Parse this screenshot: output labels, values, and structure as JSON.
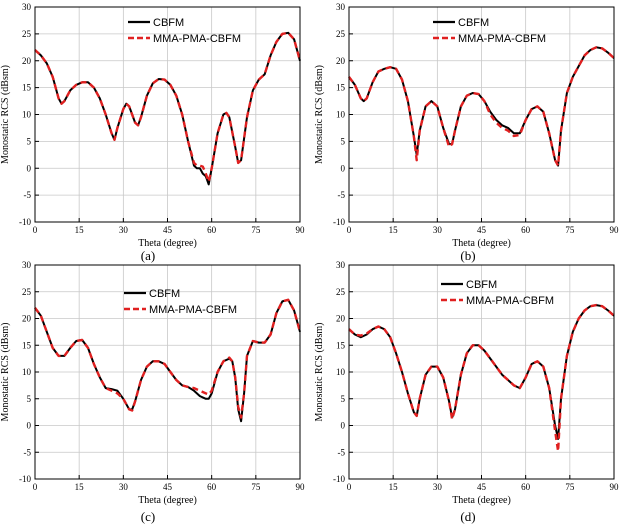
{
  "chart_data": [
    {
      "type": "line",
      "caption": "(a)",
      "xlabel": "Theta (degree)",
      "ylabel": "Monostatic RCS (dBsm)",
      "xlim": [
        0,
        90
      ],
      "ylim": [
        -10,
        30
      ],
      "xticks": [
        0,
        15,
        30,
        45,
        60,
        75,
        90
      ],
      "yticks": [
        -10,
        -5,
        0,
        5,
        10,
        15,
        20,
        25,
        30
      ],
      "grid": true,
      "legend_position": "top-right",
      "series": [
        {
          "name": "CBFM",
          "color": "#000000",
          "style": "solid",
          "x": [
            0,
            2,
            4,
            6,
            8,
            9,
            10,
            12,
            14,
            16,
            18,
            20,
            22,
            24,
            26,
            27,
            28,
            30,
            31,
            32,
            34,
            35,
            36,
            38,
            40,
            42,
            44,
            46,
            48,
            50,
            52,
            54,
            55,
            56,
            57,
            58,
            59,
            60,
            62,
            64,
            65,
            66,
            68,
            69,
            70,
            72,
            74,
            76,
            78,
            80,
            82,
            84,
            86,
            88,
            90
          ],
          "y": [
            22,
            21,
            19.5,
            17,
            13,
            12,
            12.5,
            14.5,
            15.5,
            16,
            16,
            15,
            13,
            10,
            6.5,
            5.3,
            7.5,
            11,
            12,
            11.5,
            8.5,
            8,
            9.5,
            13.5,
            15.8,
            16.6,
            16.5,
            15.5,
            13.5,
            10,
            5,
            0.5,
            0,
            0,
            -1,
            -1.5,
            -3,
            0,
            6.5,
            10,
            10.3,
            9.5,
            4,
            1,
            1.5,
            9.5,
            14.5,
            16.5,
            17.5,
            21,
            23.5,
            25,
            25.2,
            24,
            20
          ]
        },
        {
          "name": "MMA-PMA-CBFM",
          "color": "#e02020",
          "style": "dashed",
          "x": [
            0,
            2,
            4,
            6,
            8,
            9,
            10,
            12,
            14,
            16,
            18,
            20,
            22,
            24,
            26,
            27,
            28,
            30,
            31,
            32,
            34,
            35,
            36,
            38,
            40,
            42,
            44,
            46,
            48,
            50,
            52,
            54,
            55,
            56,
            57,
            58,
            59,
            60,
            62,
            64,
            65,
            66,
            68,
            69,
            70,
            72,
            74,
            76,
            78,
            80,
            82,
            84,
            86,
            88,
            90
          ],
          "y": [
            22,
            21,
            19.5,
            17,
            13,
            12,
            12.5,
            14.5,
            15.5,
            16,
            16,
            15,
            13,
            10,
            6.5,
            5.3,
            7.5,
            11,
            12,
            11.5,
            8.5,
            8,
            9.5,
            13.5,
            15.8,
            16.6,
            16.5,
            15.5,
            13.5,
            10,
            5,
            1,
            0.5,
            0.5,
            0.3,
            -1,
            -2.5,
            0,
            6.5,
            10,
            10.3,
            9.5,
            4,
            1,
            1.5,
            9.5,
            14.5,
            16.5,
            17.5,
            21,
            23.5,
            25,
            25.2,
            24,
            20
          ]
        }
      ]
    },
    {
      "type": "line",
      "caption": "(b)",
      "xlabel": "Theta (degree)",
      "ylabel": "Monostatic RCS (dBsm)",
      "xlim": [
        0,
        90
      ],
      "ylim": [
        -10,
        30
      ],
      "xticks": [
        0,
        15,
        30,
        45,
        60,
        75,
        90
      ],
      "yticks": [
        -10,
        -5,
        0,
        5,
        10,
        15,
        20,
        25,
        30
      ],
      "grid": true,
      "legend_position": "top-right",
      "series": [
        {
          "name": "CBFM",
          "color": "#000000",
          "style": "solid",
          "x": [
            0,
            2,
            4,
            5,
            6,
            8,
            10,
            12,
            14,
            16,
            18,
            20,
            22,
            23,
            24,
            26,
            28,
            30,
            32,
            34,
            35,
            36,
            38,
            40,
            42,
            44,
            46,
            48,
            50,
            52,
            54,
            56,
            58,
            60,
            62,
            64,
            66,
            68,
            70,
            71,
            72,
            74,
            76,
            78,
            80,
            82,
            84,
            86,
            88,
            90
          ],
          "y": [
            17,
            15.5,
            13,
            12.5,
            13,
            16,
            18,
            18.5,
            18.8,
            18.5,
            16.5,
            12.5,
            6,
            2.5,
            7,
            11.5,
            12.5,
            11.5,
            7.5,
            4.5,
            4.5,
            7,
            11.5,
            13.5,
            14,
            13.8,
            12.5,
            10.5,
            9,
            8,
            7.5,
            6.5,
            6.5,
            9,
            11,
            11.5,
            10.5,
            6.5,
            1.5,
            0.5,
            7,
            14,
            17,
            19,
            21,
            22,
            22.5,
            22.3,
            21.5,
            20.5
          ]
        },
        {
          "name": "MMA-PMA-CBFM",
          "color": "#e02020",
          "style": "dashed",
          "x": [
            0,
            2,
            4,
            5,
            6,
            8,
            10,
            12,
            14,
            16,
            18,
            20,
            22,
            23,
            24,
            26,
            28,
            30,
            32,
            34,
            35,
            36,
            38,
            40,
            42,
            44,
            46,
            48,
            50,
            52,
            54,
            56,
            58,
            60,
            62,
            64,
            66,
            68,
            70,
            71,
            72,
            74,
            76,
            78,
            80,
            82,
            84,
            86,
            88,
            90
          ],
          "y": [
            17,
            15.5,
            13,
            12.5,
            13,
            16,
            18,
            18.5,
            18.8,
            18.5,
            16.5,
            12.5,
            6,
            1.5,
            7,
            11.5,
            12.5,
            11.5,
            7.5,
            4,
            4.5,
            7,
            11.5,
            13.5,
            14,
            13.8,
            12.5,
            10,
            8.5,
            7.5,
            7,
            6,
            6.2,
            9,
            11,
            11.5,
            10.5,
            6.5,
            1.5,
            0.5,
            7,
            14,
            17,
            19,
            21,
            22,
            22.5,
            22.3,
            21.5,
            20.5
          ]
        }
      ]
    },
    {
      "type": "line",
      "caption": "(c)",
      "xlabel": "Theta (degree)",
      "ylabel": "Monostatic RCS (dBsm)",
      "xlim": [
        0,
        90
      ],
      "ylim": [
        -10,
        30
      ],
      "xticks": [
        0,
        15,
        30,
        45,
        60,
        75,
        90
      ],
      "yticks": [
        -10,
        -5,
        0,
        5,
        10,
        15,
        20,
        25,
        30
      ],
      "grid": true,
      "legend_position": "top-right",
      "series": [
        {
          "name": "CBFM",
          "color": "#000000",
          "style": "solid",
          "x": [
            0,
            2,
            4,
            6,
            8,
            10,
            12,
            14,
            16,
            18,
            20,
            22,
            24,
            26,
            28,
            30,
            32,
            33,
            34,
            36,
            38,
            40,
            42,
            44,
            46,
            48,
            50,
            52,
            54,
            56,
            58,
            59,
            60,
            62,
            64,
            66,
            67,
            68,
            69,
            70,
            71,
            72,
            74,
            76,
            78,
            80,
            82,
            84,
            86,
            88,
            90
          ],
          "y": [
            22,
            20.5,
            17.5,
            14.5,
            13,
            13,
            14.5,
            15.8,
            16,
            14.5,
            11.5,
            9,
            7,
            6.8,
            6.5,
            5,
            3,
            3,
            4.5,
            8.5,
            11,
            12,
            12,
            11.5,
            10,
            8.5,
            7.5,
            7.2,
            6.5,
            5.5,
            5,
            5,
            6,
            10,
            12,
            12.5,
            12,
            9,
            3,
            0.8,
            6,
            13,
            15.8,
            15.5,
            15.5,
            17,
            21,
            23.2,
            23.5,
            21.5,
            17.5
          ]
        },
        {
          "name": "MMA-PMA-CBFM",
          "color": "#e02020",
          "style": "dashed",
          "x": [
            0,
            2,
            4,
            6,
            8,
            10,
            12,
            14,
            16,
            18,
            20,
            22,
            24,
            26,
            28,
            30,
            32,
            33,
            34,
            36,
            38,
            40,
            42,
            44,
            46,
            48,
            50,
            52,
            54,
            56,
            58,
            59,
            60,
            62,
            64,
            66,
            67,
            68,
            69,
            70,
            71,
            72,
            74,
            76,
            78,
            80,
            82,
            84,
            86,
            88,
            90
          ],
          "y": [
            22,
            20.5,
            17.5,
            14.5,
            13,
            13,
            14.5,
            15.8,
            16,
            14.5,
            11.5,
            9,
            7,
            6.5,
            6,
            5,
            3,
            2.8,
            4.5,
            8.5,
            11,
            12,
            12,
            11.5,
            10,
            8.5,
            7.5,
            7.2,
            7,
            6.5,
            6,
            5.8,
            6.5,
            10,
            12,
            12.7,
            12,
            9,
            3.5,
            1.5,
            6,
            13,
            15.8,
            15.5,
            15.5,
            17,
            21,
            23.2,
            23.5,
            21.5,
            17.5
          ]
        }
      ]
    },
    {
      "type": "line",
      "caption": "(d)",
      "xlabel": "Theta (degree)",
      "ylabel": "Monostatic RCS (dBsm)",
      "xlim": [
        0,
        90
      ],
      "ylim": [
        -10,
        30
      ],
      "xticks": [
        0,
        15,
        30,
        45,
        60,
        75,
        90
      ],
      "yticks": [
        -10,
        -5,
        0,
        5,
        10,
        15,
        20,
        25,
        30
      ],
      "grid": true,
      "legend_position": "top-right",
      "series": [
        {
          "name": "CBFM",
          "color": "#000000",
          "style": "solid",
          "x": [
            0,
            2,
            4,
            6,
            8,
            10,
            12,
            14,
            16,
            18,
            20,
            22,
            23,
            24,
            26,
            28,
            30,
            32,
            34,
            35,
            36,
            38,
            40,
            42,
            44,
            46,
            48,
            50,
            52,
            54,
            56,
            58,
            60,
            62,
            64,
            66,
            68,
            70,
            71,
            72,
            74,
            76,
            78,
            80,
            82,
            84,
            86,
            88,
            90
          ],
          "y": [
            18,
            17,
            16.5,
            17,
            18,
            18.5,
            18,
            16.5,
            13.5,
            10,
            6,
            2.5,
            1.8,
            5,
            9.5,
            11,
            11,
            9,
            4.5,
            1.5,
            3,
            9.5,
            13.5,
            15,
            15,
            14,
            12.5,
            11,
            9.5,
            8.5,
            7.5,
            7,
            9,
            11.5,
            12,
            11,
            7,
            0,
            -2.5,
            5,
            13,
            17.5,
            20,
            21.5,
            22.3,
            22.5,
            22.3,
            21.5,
            20.5
          ]
        },
        {
          "name": "MMA-PMA-CBFM",
          "color": "#e02020",
          "style": "dashed",
          "x": [
            0,
            2,
            4,
            6,
            8,
            10,
            12,
            14,
            16,
            18,
            20,
            22,
            23,
            24,
            26,
            28,
            30,
            32,
            34,
            35,
            36,
            38,
            40,
            42,
            44,
            46,
            48,
            50,
            52,
            54,
            56,
            58,
            60,
            62,
            64,
            66,
            68,
            70,
            71,
            72,
            74,
            76,
            78,
            80,
            82,
            84,
            86,
            88,
            90
          ],
          "y": [
            18,
            17,
            16.8,
            17.2,
            18,
            18.5,
            18,
            16.5,
            13.5,
            10,
            6,
            2.5,
            1.8,
            5,
            9.5,
            11,
            11,
            9,
            4.5,
            1.2,
            3,
            9.5,
            13.5,
            15,
            15,
            14,
            12.5,
            11,
            9.5,
            8.5,
            7.5,
            7,
            9,
            11.5,
            12,
            11,
            7,
            -1,
            -4.8,
            5,
            13,
            17.5,
            20,
            21.5,
            22.3,
            22.5,
            22.3,
            21.5,
            20.5
          ]
        }
      ]
    }
  ]
}
